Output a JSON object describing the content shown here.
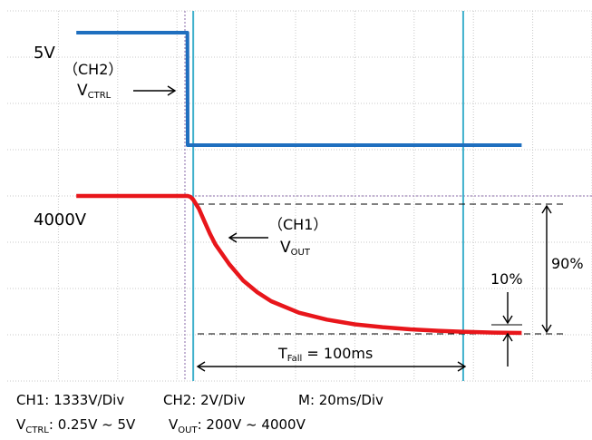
{
  "chart_data": {
    "type": "line",
    "title": "",
    "xlabel": "",
    "ylabel": "",
    "grid": true,
    "grid_divisions": {
      "x": 10,
      "y": 8
    },
    "time_per_div_ms": 20,
    "trigger_time_ms": 0,
    "fall_end_time_ms": 100,
    "series": [
      {
        "name": "CH2 VCTRL",
        "color": "#1f6fbf",
        "unit": "V",
        "high_level_label": "5V",
        "points": [
          [
            -40,
            5
          ],
          [
            -0.1,
            5
          ],
          [
            0,
            0.25
          ],
          [
            120,
            0.25
          ]
        ]
      },
      {
        "name": "CH1 VOUT",
        "color": "#e8161b",
        "unit": "V",
        "high_level_label": "4000V",
        "points": [
          [
            -40,
            4000
          ],
          [
            0,
            4000
          ],
          [
            1,
            3975
          ],
          [
            2,
            3900
          ],
          [
            4,
            3650
          ],
          [
            6,
            3300
          ],
          [
            8,
            2950
          ],
          [
            10,
            2650
          ],
          [
            15,
            2100
          ],
          [
            20,
            1650
          ],
          [
            25,
            1330
          ],
          [
            30,
            1080
          ],
          [
            40,
            760
          ],
          [
            50,
            570
          ],
          [
            60,
            440
          ],
          [
            70,
            360
          ],
          [
            80,
            300
          ],
          [
            90,
            260
          ],
          [
            100,
            230
          ],
          [
            110,
            210
          ],
          [
            120,
            200
          ]
        ]
      }
    ]
  },
  "labels": {
    "ch2_level": "5V",
    "ch2_tag": "（CH2）",
    "ch2_name_main": "V",
    "ch2_name_sub": "CTRL",
    "ch1_level": "4000V",
    "ch1_tag": "（CH1）",
    "ch1_name_main": "V",
    "ch1_name_sub": "OUT",
    "pct_90": "90%",
    "pct_10": "10%",
    "tfall_main": "T",
    "tfall_sub": "Fall",
    "tfall_value": " = 100ms"
  },
  "footer": {
    "ch1_scale": "CH1: 1333V/Div",
    "ch2_scale": "CH2: 2V/Div",
    "time_scale": "M: 20ms/Div",
    "vctrl_main": "V",
    "vctrl_sub": "CTRL",
    "vctrl_range": ": 0.25V ~ 5V",
    "vout_main": "V",
    "vout_sub": "OUT",
    "vout_range": ": 200V ~ 4000V"
  },
  "colors": {
    "ch1": "#e8161b",
    "ch2": "#1f6fbf",
    "cursor": "#3fb0cc",
    "grid": "#c8c8c8",
    "trigger_marker": "#8a6aa8"
  }
}
